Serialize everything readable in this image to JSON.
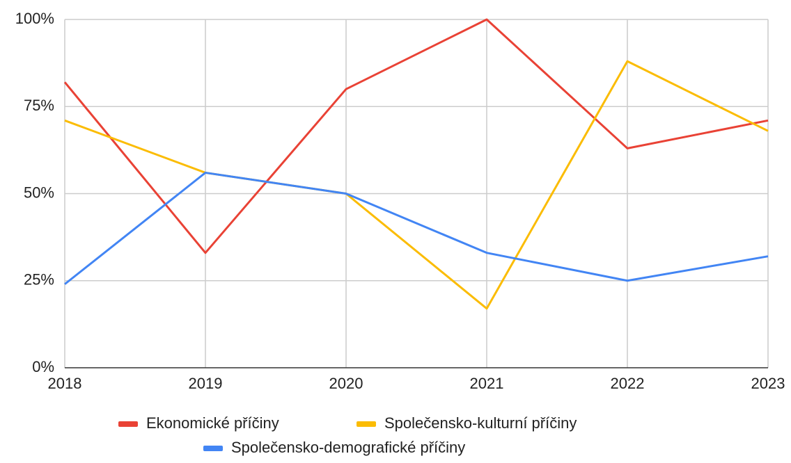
{
  "chart_data": {
    "type": "line",
    "x": [
      2018,
      2019,
      2020,
      2021,
      2022,
      2023
    ],
    "xlim": [
      2018,
      2023
    ],
    "xticks": [
      2018,
      2019,
      2020,
      2021,
      2022,
      2023
    ],
    "ylim": [
      0,
      100
    ],
    "yticks": [
      {
        "value": 0,
        "label": "0%"
      },
      {
        "value": 25,
        "label": "25%"
      },
      {
        "value": 50,
        "label": "50%"
      },
      {
        "value": 75,
        "label": "75%"
      },
      {
        "value": 100,
        "label": "100%"
      }
    ],
    "grid": true,
    "legend": "bottom",
    "series": [
      {
        "name": "Ekonomické příčiny",
        "color": "#e94235",
        "values": [
          82,
          33,
          80,
          100,
          63,
          71
        ]
      },
      {
        "name": "Společensko-kulturní příčiny",
        "color": "#fbbc04",
        "values": [
          71,
          56,
          50,
          17,
          88,
          68
        ]
      },
      {
        "name": "Společensko-demografické příčiny",
        "color": "#4285f4",
        "values": [
          24,
          56,
          50,
          33,
          25,
          32
        ]
      }
    ]
  }
}
